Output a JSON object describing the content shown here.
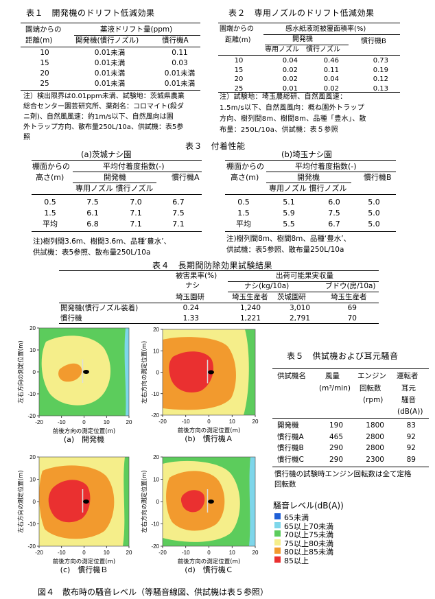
{
  "t1": {
    "title": "表１　開発機のドリフト低減効果",
    "h_dist1": "園端からの",
    "h_dist2": "距離(m)",
    "h_group": "薬液ドリフト量(ppm)",
    "h_col1": "開発機(慣行ノズル)",
    "h_col2": "慣行機A",
    "rows": [
      {
        "d": "10",
        "a": "0.01未満",
        "b": "0.11"
      },
      {
        "d": "15",
        "a": "0.01未満",
        "b": "0.03"
      },
      {
        "d": "20",
        "a": "0.01未満",
        "b": "0.01未満"
      },
      {
        "d": "25",
        "a": "0.01未満",
        "b": "0.01未満"
      }
    ],
    "note": [
      "注）検出限界は0.01ppm未満、試験地：茨城県農業",
      "総合センター園芸研究所、薬剤名：コロマイト(殺ダ",
      "ニ剤)、自然風風速：約1m/s以下、自然風向は園",
      "外トラップ方向、散布量250L/10a、供試機：表5参",
      "照"
    ]
  },
  "t2": {
    "title": "表２　専用ノズルのドリフト低減効果",
    "h_dist1": "園端からの",
    "h_dist2": "距離(m)",
    "h_group": "感水紙液斑被覆面積率(%)",
    "h_sub": "開発機",
    "h_col3": "慣行機B",
    "h_col1": "専用ノズル",
    "h_col2": "慣行ノズル",
    "rows": [
      {
        "d": "10",
        "a": "0.04",
        "b": "0.46",
        "c": "0.73"
      },
      {
        "d": "15",
        "a": "0.02",
        "b": "0.11",
        "c": "0.19"
      },
      {
        "d": "20",
        "a": "0.02",
        "b": "0.04",
        "c": "0.12"
      },
      {
        "d": "25",
        "a": "0.01",
        "b": "0.02",
        "c": "0.13"
      }
    ],
    "note": [
      "注）試験地：埼玉農総研、自然風風速：",
      "1.5m/s以下、自然風風向：概ね園外トラップ",
      "方向、樹列間8m、樹間8m、品種「豊水」、散",
      "布量：250L/10a、供試機：表５参照"
    ]
  },
  "t3": {
    "title": "表３　付着性能",
    "a_title": "(a)茨城ナシ園",
    "b_title": "(b)埼玉ナシ園",
    "h_h1": "棚面からの",
    "h_h2": "高さ(m)",
    "h_group": "平均付着度指数(-)",
    "h_dev": "開発機",
    "a_conv": "慣行機A",
    "b_conv": "慣行機B",
    "h_nozzles": "専用ノズル 慣行ノズル",
    "a_rows": [
      {
        "h": "0.5",
        "x": "7.5",
        "y": "7.0",
        "z": "6.7"
      },
      {
        "h": "1.5",
        "x": "6.1",
        "y": "7.1",
        "z": "7.5"
      },
      {
        "h": "平均",
        "x": "6.8",
        "y": "7.1",
        "z": "7.1"
      }
    ],
    "b_rows": [
      {
        "h": "0.5",
        "x": "5.1",
        "y": "6.0",
        "z": "5.0"
      },
      {
        "h": "1.5",
        "x": "5.9",
        "y": "7.5",
        "z": "5.0"
      },
      {
        "h": "平均",
        "x": "5.5",
        "y": "6.7",
        "z": "5.0"
      }
    ],
    "a_note": [
      "注)樹列間3.6m、樹間3.6m、品種‘豊水’、",
      "供試機：表5参照、散布量250L/10a"
    ],
    "b_note": [
      "注)樹列間8m、樹間8m、品種‘豊水’、",
      "供試機：表5参照、散布量250L/10a"
    ]
  },
  "t4": {
    "title": "表４　長期間防除効果試験結果",
    "h_damage1": "被害果率(%)",
    "h_damage2": "ナシ",
    "h_damage3": "埼玉園研",
    "h_ship": "出荷可能果実収量",
    "h_pear": "ナシ(kg/10a)",
    "h_grape": "ブドウ(房/10a)",
    "h_c2": "埼玉生産者",
    "h_c3": "茨城園研",
    "h_c4": "埼玉生産者",
    "rows": [
      {
        "name": "開発機(慣行ノズル装着)",
        "a": "0.24",
        "b": "1,240",
        "c": "3,010",
        "d": "69"
      },
      {
        "name": "慣行機",
        "a": "1.33",
        "b": "1,221",
        "c": "2,791",
        "d": "70"
      }
    ]
  },
  "t5": {
    "title": "表５　供試機および耳元騒音",
    "h1": "供試機名",
    "h2a": "風量",
    "h2b": "(m³/min)",
    "h3a": "エンジン",
    "h3b": "回転数",
    "h3c": "(rpm)",
    "h4a": "運転者",
    "h4b": "耳元",
    "h4c": "騒音",
    "h4d": "(dB(A))",
    "rows": [
      {
        "n": "開発機",
        "a": "190",
        "b": "1800",
        "c": "83"
      },
      {
        "n": "慣行機A",
        "a": "465",
        "b": "2800",
        "c": "92"
      },
      {
        "n": "慣行機B",
        "a": "290",
        "b": "2800",
        "c": "92"
      },
      {
        "n": "慣行機C",
        "a": "290",
        "b": "2300",
        "c": "89"
      }
    ],
    "note": [
      "慣行機の試験時エンジン回転数は全て定格",
      "回転数"
    ]
  },
  "fig4": {
    "ylabel": "左右方向の測定位置(m)",
    "xlabel": "前後方向の測定位置(m)",
    "xticks": [
      "-20",
      "-10",
      "0",
      "10",
      "20"
    ],
    "yticks": [
      "20",
      "10",
      "0",
      "-10",
      "-20"
    ],
    "panels": [
      "(a)　開発機",
      "(b)　慣行機Ａ",
      "(c)　慣行機Ｂ",
      "(d)　慣行機Ｃ"
    ],
    "caption": "図４　散布時の騒音レベル（等騒音線図、供試機は表５参照）",
    "legend_title": "騒音レベル(dB(A))",
    "legend": [
      {
        "label": "65未満",
        "color": "#1f5fd6"
      },
      {
        "label": "65以上70未満",
        "color": "#7ed6ea"
      },
      {
        "label": "70以上75未満",
        "color": "#5ccc5c"
      },
      {
        "label": "75以上80未満",
        "color": "#f5ee8a"
      },
      {
        "label": "80以上85未満",
        "color": "#f29a2e"
      },
      {
        "label": "85以上",
        "color": "#ea3030"
      }
    ]
  }
}
